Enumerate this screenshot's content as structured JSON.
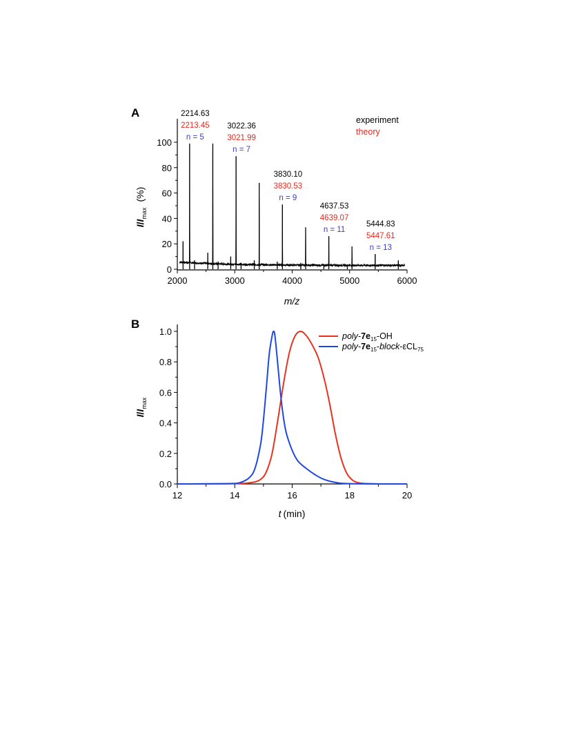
{
  "chart_data": [
    {
      "panel": "A",
      "type": "line",
      "xlabel_italic": "m/z",
      "ylabel_parts": [
        "I",
        "/",
        "I",
        "max",
        "(%)"
      ],
      "xlim": [
        2000,
        6000
      ],
      "ylim": [
        0,
        100
      ],
      "xticks": [
        2000,
        3000,
        4000,
        5000,
        6000
      ],
      "yticks": [
        0,
        20,
        40,
        60,
        80,
        100
      ],
      "legend": [
        {
          "label": "experiment",
          "color": "#000000"
        },
        {
          "label": "theory",
          "color": "#e8281e"
        }
      ],
      "peaks": [
        {
          "mz": 2100,
          "intensity": 22
        },
        {
          "mz": 2214.63,
          "intensity": 99
        },
        {
          "mz": 2300,
          "intensity": 7
        },
        {
          "mz": 2530,
          "intensity": 13
        },
        {
          "mz": 2618,
          "intensity": 99
        },
        {
          "mz": 2710,
          "intensity": 6
        },
        {
          "mz": 2930,
          "intensity": 10
        },
        {
          "mz": 3022.36,
          "intensity": 89
        },
        {
          "mz": 3110,
          "intensity": 5
        },
        {
          "mz": 3340,
          "intensity": 7
        },
        {
          "mz": 3426,
          "intensity": 68
        },
        {
          "mz": 3740,
          "intensity": 6
        },
        {
          "mz": 3830.1,
          "intensity": 51
        },
        {
          "mz": 4150,
          "intensity": 5
        },
        {
          "mz": 4234,
          "intensity": 33
        },
        {
          "mz": 4550,
          "intensity": 4
        },
        {
          "mz": 4637.53,
          "intensity": 26
        },
        {
          "mz": 4960,
          "intensity": 3
        },
        {
          "mz": 5041,
          "intensity": 18
        },
        {
          "mz": 5444.83,
          "intensity": 12
        },
        {
          "mz": 5848,
          "intensity": 7
        }
      ],
      "annotations": [
        {
          "x": 2214.63,
          "y": 99,
          "experiment": "2214.63",
          "theory": "2213.45",
          "n": "n = 5"
        },
        {
          "x": 3022.36,
          "y": 89,
          "experiment": "3022.36",
          "theory": "3021.99",
          "n": "n = 7"
        },
        {
          "x": 3830.1,
          "y": 51,
          "experiment": "3830.10",
          "theory": "3830.53",
          "n": "n = 9"
        },
        {
          "x": 4637.53,
          "y": 26,
          "experiment": "4637.53",
          "theory": "4639.07",
          "n": "n = 11"
        },
        {
          "x": 5444.83,
          "y": 12,
          "experiment": "5444.83",
          "theory": "5447.61",
          "n": "n = 13"
        }
      ]
    },
    {
      "panel": "B",
      "type": "line",
      "xlabel_parts": [
        "t",
        "(min)"
      ],
      "ylabel_parts": [
        "I",
        "/",
        "I",
        "max"
      ],
      "xlim": [
        12,
        20
      ],
      "ylim": [
        0,
        1.0
      ],
      "xticks": [
        12,
        14,
        16,
        18,
        20
      ],
      "yticks": [
        0.0,
        0.2,
        0.4,
        0.6,
        0.8,
        1.0
      ],
      "ytick_labels": [
        "0.0",
        "0.2",
        "0.4",
        "0.6",
        "0.8",
        "1.0"
      ],
      "series": [
        {
          "label_parts": [
            "poly",
            "-",
            "7e",
            "15",
            "-OH"
          ],
          "color": "#e8321e",
          "x": [
            12,
            14,
            14.6,
            14.9,
            15.1,
            15.3,
            15.5,
            15.7,
            15.9,
            16.1,
            16.3,
            16.5,
            16.7,
            16.9,
            17.1,
            17.3,
            17.5,
            17.7,
            17.9,
            18.1,
            18.3,
            18.6,
            19,
            20
          ],
          "y": [
            0,
            0.002,
            0.01,
            0.03,
            0.08,
            0.2,
            0.42,
            0.66,
            0.86,
            0.97,
            1.0,
            0.97,
            0.91,
            0.83,
            0.7,
            0.53,
            0.33,
            0.17,
            0.07,
            0.025,
            0.008,
            0.002,
            0,
            0
          ]
        },
        {
          "label_parts": [
            "poly",
            "-",
            "7e",
            "15",
            "-",
            "block",
            "-εCL",
            "75"
          ],
          "color": "#1e46e6",
          "x": [
            12,
            13.8,
            14.2,
            14.5,
            14.7,
            14.9,
            15.0,
            15.1,
            15.2,
            15.3,
            15.35,
            15.4,
            15.5,
            15.6,
            15.7,
            15.8,
            16.0,
            16.2,
            16.5,
            16.8,
            17.1,
            17.5,
            18,
            20
          ],
          "y": [
            0,
            0.002,
            0.01,
            0.04,
            0.1,
            0.26,
            0.42,
            0.63,
            0.85,
            0.97,
            1.0,
            0.97,
            0.78,
            0.58,
            0.43,
            0.33,
            0.22,
            0.15,
            0.1,
            0.06,
            0.03,
            0.01,
            0.002,
            0
          ]
        }
      ]
    }
  ]
}
